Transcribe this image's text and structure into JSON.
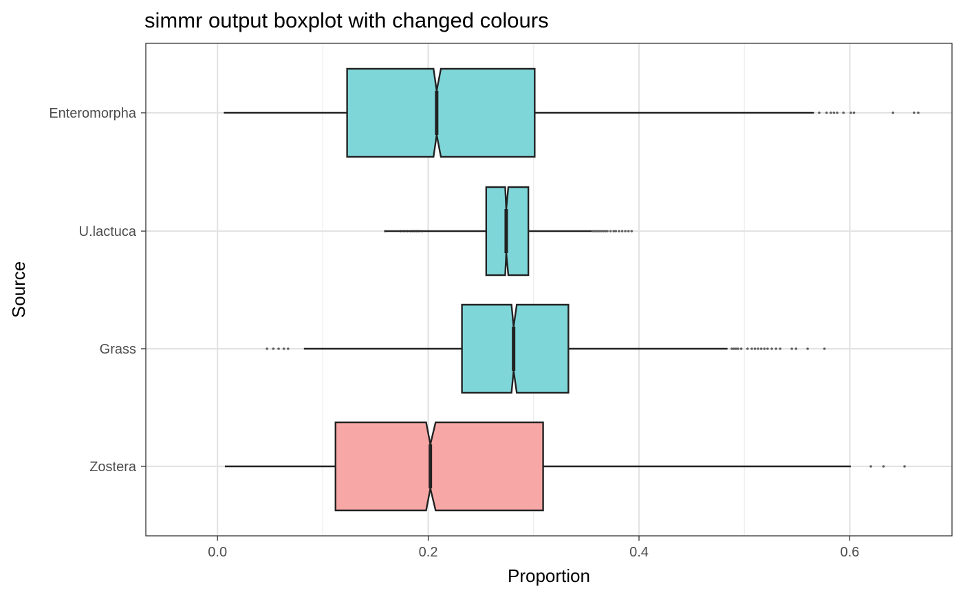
{
  "chart_data": {
    "type": "boxplot",
    "title": "simmr output boxplot with changed colours",
    "xlabel": "Proportion",
    "ylabel": "Source",
    "xlim": [
      -0.068,
      0.697
    ],
    "x_ticks": [
      0.0,
      0.2,
      0.4,
      0.6
    ],
    "x_tick_labels": [
      "0.0",
      "0.2",
      "0.4",
      "0.6"
    ],
    "orientation": "horizontal",
    "notched": true,
    "grid": true,
    "categories": [
      "Enteromorpha",
      "U.lactuca",
      "Grass",
      "Zostera"
    ],
    "boxes": [
      {
        "category": "Enteromorpha",
        "whisker_low": 0.006,
        "q1": 0.123,
        "median": 0.208,
        "q3": 0.301,
        "whisker_high": 0.566,
        "notch_low": 0.205,
        "notch_high": 0.212,
        "fill": "#7fd6d9",
        "outliers": [
          0.571,
          0.578,
          0.582,
          0.585,
          0.588,
          0.594,
          0.601,
          0.604,
          0.641,
          0.661,
          0.665
        ]
      },
      {
        "category": "U.lactuca",
        "whisker_low": 0.159,
        "q1": 0.255,
        "median": 0.274,
        "q3": 0.295,
        "whisker_high": 0.355,
        "notch_low": 0.273,
        "notch_high": 0.276,
        "fill": "#7fd6d9",
        "outliers": [
          0.159,
          0.174,
          0.177,
          0.18,
          0.183,
          0.185,
          0.187,
          0.189,
          0.191,
          0.194,
          0.356,
          0.358,
          0.36,
          0.362,
          0.364,
          0.366,
          0.368,
          0.37,
          0.373,
          0.376,
          0.378,
          0.381,
          0.384,
          0.387,
          0.39,
          0.393
        ]
      },
      {
        "category": "Grass",
        "whisker_low": 0.082,
        "q1": 0.232,
        "median": 0.281,
        "q3": 0.333,
        "whisker_high": 0.484,
        "notch_low": 0.279,
        "notch_high": 0.284,
        "fill": "#7fd6d9",
        "outliers": [
          0.047,
          0.053,
          0.058,
          0.063,
          0.067,
          0.488,
          0.49,
          0.492,
          0.494,
          0.497,
          0.503,
          0.507,
          0.51,
          0.513,
          0.516,
          0.519,
          0.522,
          0.526,
          0.53,
          0.534,
          0.545,
          0.549,
          0.56,
          0.576
        ]
      },
      {
        "category": "Zostera",
        "whisker_low": 0.007,
        "q1": 0.112,
        "median": 0.202,
        "q3": 0.309,
        "whisker_high": 0.601,
        "notch_low": 0.198,
        "notch_high": 0.207,
        "fill": "#f7a8a6",
        "outliers": [
          0.62,
          0.632,
          0.652
        ]
      }
    ]
  }
}
